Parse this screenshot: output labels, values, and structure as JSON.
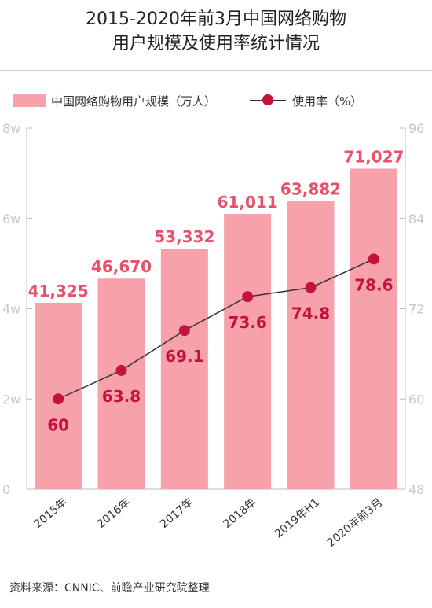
{
  "title_line1": "2015-2020年前3月中国网络购物",
  "title_line2": "用户规模及使用率统计情况",
  "source": "资料来源：CNNIC、前瞻产业研究院整理",
  "colors": {
    "bar": "#f7a1aa",
    "bar_label": "#e8506b",
    "line": "#333333",
    "marker": "#c4123e",
    "rate_label": "#c4123e",
    "axis": "#bbbbbb"
  },
  "chart_data": {
    "type": "bar",
    "categories": [
      "2015年",
      "2016年",
      "2017年",
      "2018年",
      "2019年H1",
      "2020年前3月"
    ],
    "series": [
      {
        "name": "中国网络购物用户规模（万人）",
        "type": "bar",
        "axis": "left",
        "values": [
          41325,
          46670,
          53332,
          61011,
          63882,
          71027
        ],
        "labels": [
          "41,325",
          "46,670",
          "53,332",
          "61,011",
          "63,882",
          "71,027"
        ]
      },
      {
        "name": "使用率（%）",
        "type": "line",
        "axis": "right",
        "values": [
          60,
          63.8,
          69.1,
          73.6,
          74.8,
          78.6
        ],
        "labels": [
          "60",
          "63.8",
          "69.1",
          "73.6",
          "74.8",
          "78.6"
        ]
      }
    ],
    "y_left": {
      "min": 0,
      "max": 80000,
      "ticks": [
        0,
        20000,
        40000,
        60000,
        80000
      ],
      "tick_labels": [
        "0",
        "2w",
        "4w",
        "6w",
        "8w"
      ]
    },
    "y_right": {
      "min": 48,
      "max": 96,
      "ticks": [
        48,
        60,
        72,
        84,
        96
      ],
      "tick_labels": [
        "48",
        "60",
        "72",
        "84",
        "96"
      ]
    },
    "grid": false,
    "legend_position": "top-left"
  }
}
